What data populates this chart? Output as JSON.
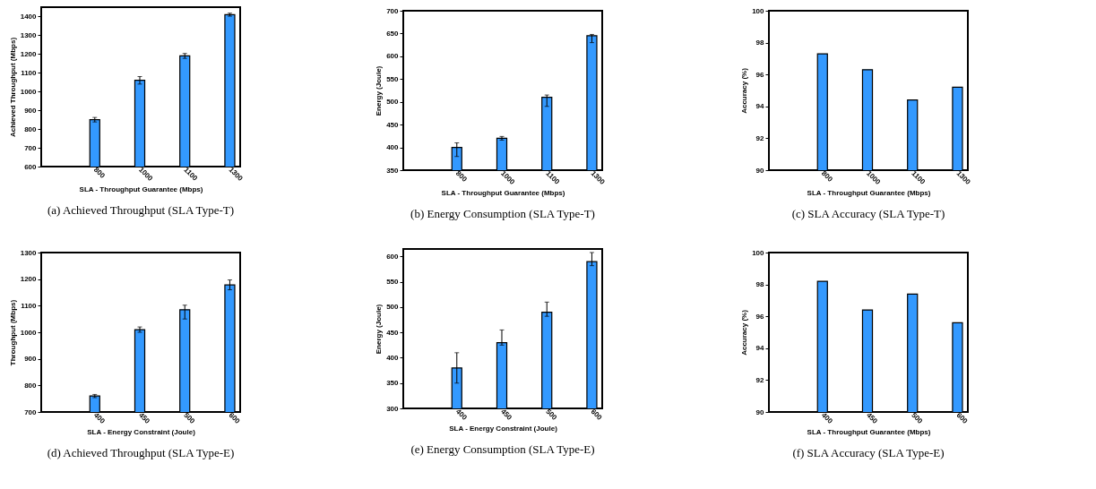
{
  "chart_data": [
    {
      "type": "bar",
      "title": "(a) Achieved Throughput (SLA Type-T)",
      "xlabel": "SLA - Throughput Guarantee (Mbps)",
      "ylabel": "Achieved Throughput (Mbps)",
      "categories": [
        "800",
        "1000",
        "1100",
        "1300"
      ],
      "values": [
        850,
        1060,
        1190,
        1410
      ],
      "errors": [
        12,
        20,
        13,
        8
      ],
      "color": "#3399ff",
      "ylim": [
        600,
        1450
      ],
      "yticks": [
        600,
        700,
        800,
        900,
        1000,
        1100,
        1200,
        1300,
        1400
      ],
      "grid": false
    },
    {
      "type": "bar",
      "title": "(b) Energy Consumption (SLA Type-T)",
      "xlabel": "SLA - Throughput Guarantee (Mbps)",
      "ylabel": "Energy (Joule)",
      "categories": [
        "800",
        "1000",
        "1100",
        "1300"
      ],
      "values": [
        400,
        420,
        510,
        645
      ],
      "errors": [
        [
          380,
          410
        ],
        4,
        [
          490,
          515
        ],
        [
          630,
          648
        ]
      ],
      "color": "#3399ff",
      "ylim": [
        350,
        700
      ],
      "yticks": [
        350,
        400,
        450,
        500,
        550,
        600,
        650,
        700
      ],
      "grid": false
    },
    {
      "type": "bar",
      "title": "(c) SLA Accuracy (SLA Type-T)",
      "xlabel": "SLA - Throughput Guarantee (Mbps)",
      "ylabel": "Accuracy (%)",
      "categories": [
        "800",
        "1000",
        "1100",
        "1300"
      ],
      "values": [
        97.3,
        96.3,
        94.4,
        95.2
      ],
      "color": "#3399ff",
      "ylim": [
        90,
        100
      ],
      "yticks": [
        90,
        92,
        94,
        96,
        98,
        100
      ],
      "grid": false
    },
    {
      "type": "bar",
      "title": "(d) Achieved Throughput (SLA Type-E)",
      "xlabel": "SLA - Energy Constraint (Joule)",
      "ylabel": "Throughput (Mbps)",
      "categories": [
        "400",
        "450",
        "500",
        "600"
      ],
      "values": [
        760,
        1010,
        1085,
        1178
      ],
      "errors": [
        6,
        10,
        [
          1050,
          1102
        ],
        [
          1160,
          1197
        ]
      ],
      "color": "#3399ff",
      "ylim": [
        700,
        1300
      ],
      "yticks": [
        700,
        800,
        900,
        1000,
        1100,
        1200,
        1300
      ],
      "grid": false
    },
    {
      "type": "bar",
      "title": "(e) Energy Consumption (SLA Type-E)",
      "xlabel": "SLA - Energy Constraint (Joule)",
      "ylabel": "Energy (Joule)",
      "categories": [
        "400",
        "450",
        "500",
        "600"
      ],
      "values": [
        380,
        430,
        490,
        590
      ],
      "errors": [
        [
          350,
          410
        ],
        [
          425,
          455
        ],
        [
          482,
          510
        ],
        [
          582,
          608
        ]
      ],
      "color": "#3399ff",
      "ylim": [
        300,
        615
      ],
      "yticks": [
        300,
        350,
        400,
        450,
        500,
        550,
        600
      ],
      "grid": false
    },
    {
      "type": "bar",
      "title": "(f) SLA Accuracy (SLA Type-E)",
      "xlabel": "SLA - Throughput Guarantee (Mbps)",
      "ylabel": "Accuracy (%)",
      "categories": [
        "400",
        "450",
        "500",
        "600"
      ],
      "values": [
        98.2,
        96.4,
        97.4,
        95.6
      ],
      "color": "#3399ff",
      "ylim": [
        90,
        100
      ],
      "yticks": [
        90,
        92,
        94,
        96,
        98,
        100
      ],
      "grid": false
    }
  ]
}
